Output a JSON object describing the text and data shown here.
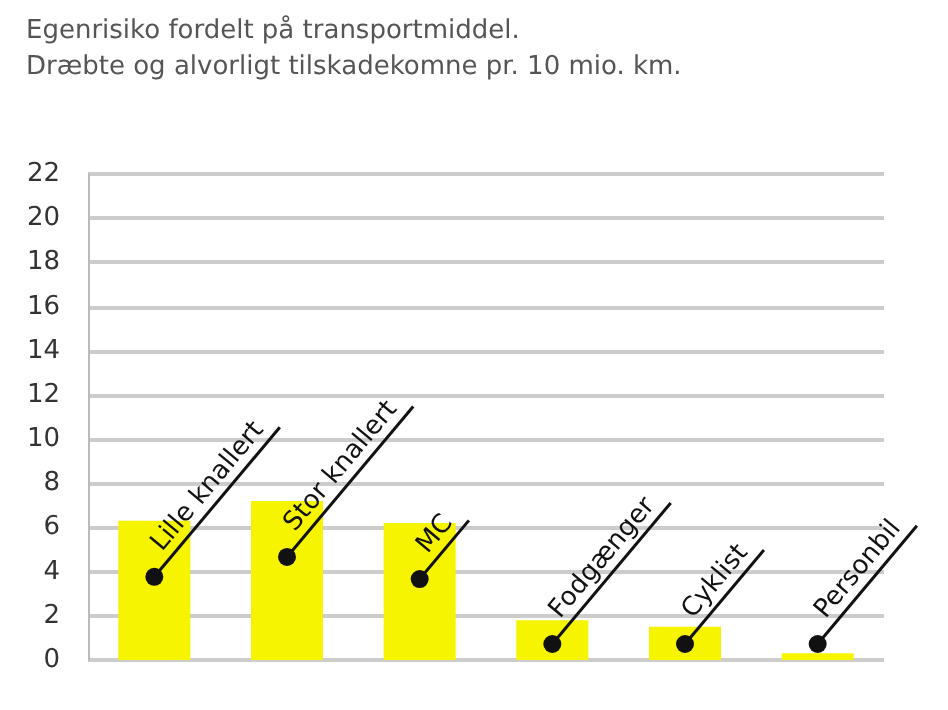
{
  "chart_data": {
    "type": "bar",
    "title": "Egenrisiko fordelt på transportmiddel.",
    "subtitle": "Dræbte og alvorligt tilskadekomne pr. 10 mio. km.",
    "categories": [
      "Lille knallert",
      "Stor knallert",
      "MC",
      "Fodgænger",
      "Cyklist",
      "Personbil"
    ],
    "values": [
      6.3,
      7.2,
      6.2,
      1.8,
      1.5,
      0.3
    ],
    "color": "#f7f400",
    "ylim": [
      0,
      22
    ],
    "yticks": [
      0,
      2,
      4,
      6,
      8,
      10,
      12,
      14,
      16,
      18,
      20,
      22
    ],
    "grid": "y"
  }
}
